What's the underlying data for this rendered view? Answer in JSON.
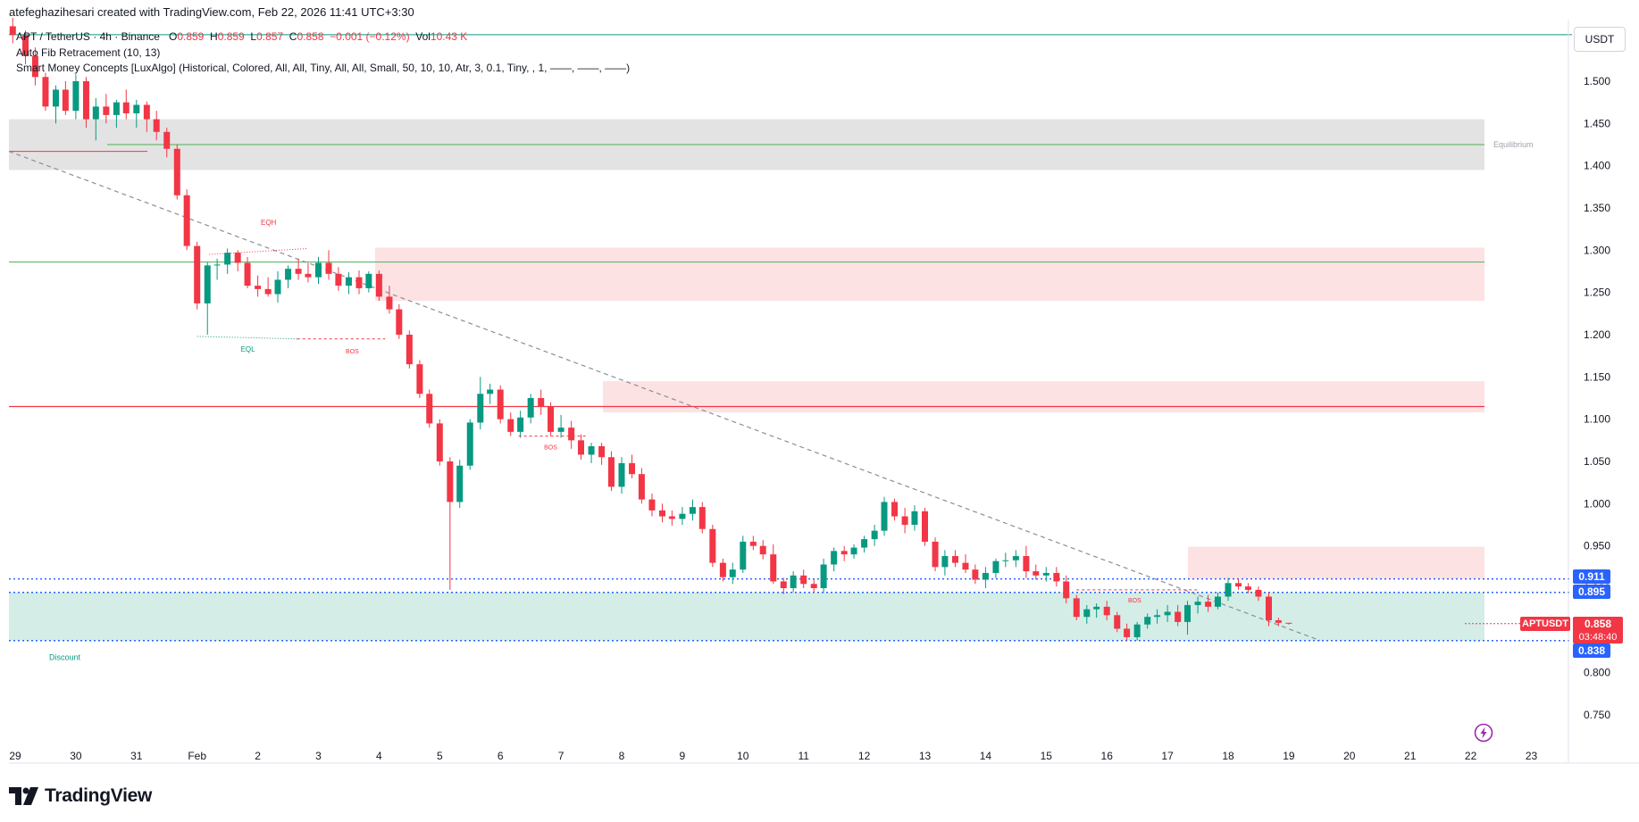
{
  "header": {
    "created_by": "atefeghazihesari created with TradingView.com, Feb 22, 2026 11:41 UTC+3:30",
    "symbol_line": "APT / TetherUS · 4h · Binance",
    "ohlc": {
      "o_label": "O",
      "o_value": "0.859",
      "h_label": "H",
      "h_value": "0.859",
      "l_label": "L",
      "l_value": "0.857",
      "c_label": "C",
      "c_value": "0.858",
      "change": "−0.001 (−0.12%)",
      "vol_label": "Vol",
      "vol_value": "10.43 K"
    },
    "indicator_fib": "Auto Fib Retracement (10, 13)",
    "indicator_smc": "Smart Money Concepts [LuxAlgo] (Historical, Colored, All, All, Tiny, All, All, Small, 50, 10, 10, Atr, 3, 0.1, Tiny, , 1, ——, ——, ——)"
  },
  "price_scale": {
    "currency": "USDT",
    "ticks": [
      "1.500",
      "1.450",
      "1.400",
      "1.350",
      "1.300",
      "1.250",
      "1.200",
      "1.150",
      "1.100",
      "1.050",
      "1.000",
      "0.950",
      "0.900",
      "0.850",
      "0.800",
      "0.750"
    ],
    "tags": {
      "level_0911": "0.911",
      "level_0895": "0.895",
      "level_0838": "0.838",
      "last_symbol": "APTUSDT",
      "last_price": "0.858",
      "countdown": "03:48:40"
    }
  },
  "time_scale": {
    "ticks": [
      "29",
      "30",
      "31",
      "Feb",
      "2",
      "3",
      "4",
      "5",
      "6",
      "7",
      "8",
      "9",
      "10",
      "11",
      "12",
      "13",
      "14",
      "15",
      "16",
      "17",
      "18",
      "19",
      "20",
      "21",
      "22",
      "23"
    ]
  },
  "annotations": {
    "equilibrium": "Equilibrium",
    "discount": "Discount",
    "eqh": "EQH",
    "eql": "EQL",
    "bos_1": "BOS",
    "bos_2": "BOS",
    "bos_3": "BOS"
  },
  "colors": {
    "up": "#089981",
    "down": "#f23645",
    "premium_zone": "#fde2e4",
    "discount_zone": "#d4ede7",
    "equilibrium_zone": "#e1e1e3",
    "accent_blue": "#2962ff"
  },
  "footer": {
    "brand": "TradingView"
  },
  "chart_data": {
    "type": "candlestick",
    "symbol": "APTUSDT",
    "timeframe": "4h",
    "ylim": [
      0.72,
      1.56
    ],
    "x_start": 28.95,
    "x_end": 23.7,
    "columns": [
      "day",
      "open",
      "high",
      "low",
      "close"
    ],
    "candles": [
      [
        28.96,
        1.565,
        1.575,
        1.545,
        1.555
      ],
      [
        29.17,
        1.555,
        1.56,
        1.52,
        1.53
      ],
      [
        29.33,
        1.53,
        1.54,
        1.495,
        1.505
      ],
      [
        29.5,
        1.505,
        1.51,
        1.465,
        1.47
      ],
      [
        29.67,
        1.47,
        1.495,
        1.45,
        1.49
      ],
      [
        29.83,
        1.49,
        1.5,
        1.46,
        1.465
      ],
      [
        30.0,
        1.465,
        1.508,
        1.455,
        1.5
      ],
      [
        30.17,
        1.5,
        1.505,
        1.445,
        1.455
      ],
      [
        30.33,
        1.455,
        1.48,
        1.43,
        1.47
      ],
      [
        30.5,
        1.47,
        1.485,
        1.45,
        1.46
      ],
      [
        30.67,
        1.46,
        1.478,
        1.445,
        1.475
      ],
      [
        30.83,
        1.475,
        1.49,
        1.455,
        1.462
      ],
      [
        31.0,
        1.462,
        1.478,
        1.445,
        1.472
      ],
      [
        31.17,
        1.472,
        1.476,
        1.44,
        1.455
      ],
      [
        31.33,
        1.455,
        1.465,
        1.43,
        1.44
      ],
      [
        31.5,
        1.44,
        1.445,
        1.41,
        1.42
      ],
      [
        31.67,
        1.42,
        1.425,
        1.36,
        1.365
      ],
      [
        31.83,
        1.365,
        1.372,
        1.3,
        1.305
      ],
      [
        32.0,
        1.305,
        1.31,
        1.23,
        1.237
      ],
      [
        32.17,
        1.237,
        1.286,
        1.2,
        1.282
      ],
      [
        32.33,
        1.282,
        1.29,
        1.265,
        1.283
      ],
      [
        32.5,
        1.283,
        1.302,
        1.272,
        1.297
      ],
      [
        32.67,
        1.297,
        1.3,
        1.275,
        1.285
      ],
      [
        32.83,
        1.285,
        1.292,
        1.255,
        1.258
      ],
      [
        33.0,
        1.258,
        1.27,
        1.245,
        1.254
      ],
      [
        33.17,
        1.254,
        1.268,
        1.245,
        1.248
      ],
      [
        33.33,
        1.248,
        1.275,
        1.238,
        1.265
      ],
      [
        33.5,
        1.265,
        1.282,
        1.255,
        1.278
      ],
      [
        33.67,
        1.278,
        1.29,
        1.265,
        1.272
      ],
      [
        33.83,
        1.272,
        1.285,
        1.262,
        1.268
      ],
      [
        34.0,
        1.268,
        1.292,
        1.26,
        1.285
      ],
      [
        34.17,
        1.285,
        1.3,
        1.265,
        1.272
      ],
      [
        34.33,
        1.272,
        1.28,
        1.252,
        1.258
      ],
      [
        34.5,
        1.258,
        1.274,
        1.248,
        1.268
      ],
      [
        34.67,
        1.268,
        1.276,
        1.248,
        1.255
      ],
      [
        34.83,
        1.255,
        1.275,
        1.25,
        1.272
      ],
      [
        35.0,
        1.272,
        1.276,
        1.24,
        1.245
      ],
      [
        35.17,
        1.245,
        1.258,
        1.225,
        1.23
      ],
      [
        35.33,
        1.23,
        1.236,
        1.195,
        1.2
      ],
      [
        35.5,
        1.2,
        1.205,
        1.16,
        1.165
      ],
      [
        35.67,
        1.165,
        1.17,
        1.125,
        1.13
      ],
      [
        35.83,
        1.13,
        1.135,
        1.09,
        1.095
      ],
      [
        36.0,
        1.095,
        1.1,
        1.045,
        1.05
      ],
      [
        36.17,
        1.05,
        1.055,
        0.898,
        1.002
      ],
      [
        36.33,
        1.002,
        1.052,
        0.995,
        1.045
      ],
      [
        36.5,
        1.045,
        1.1,
        1.04,
        1.096
      ],
      [
        36.67,
        1.096,
        1.15,
        1.088,
        1.13
      ],
      [
        36.83,
        1.13,
        1.142,
        1.118,
        1.135
      ],
      [
        37.0,
        1.135,
        1.14,
        1.095,
        1.1
      ],
      [
        37.17,
        1.1,
        1.108,
        1.08,
        1.085
      ],
      [
        37.33,
        1.085,
        1.11,
        1.078,
        1.102
      ],
      [
        37.5,
        1.102,
        1.13,
        1.095,
        1.125
      ],
      [
        37.67,
        1.125,
        1.135,
        1.105,
        1.115
      ],
      [
        37.83,
        1.115,
        1.12,
        1.08,
        1.085
      ],
      [
        38.0,
        1.085,
        1.105,
        1.078,
        1.09
      ],
      [
        38.17,
        1.09,
        1.098,
        1.065,
        1.075
      ],
      [
        38.33,
        1.075,
        1.082,
        1.052,
        1.058
      ],
      [
        38.5,
        1.058,
        1.072,
        1.048,
        1.068
      ],
      [
        38.67,
        1.068,
        1.072,
        1.046,
        1.055
      ],
      [
        38.83,
        1.055,
        1.062,
        1.015,
        1.02
      ],
      [
        39.0,
        1.02,
        1.055,
        1.012,
        1.048
      ],
      [
        39.17,
        1.048,
        1.058,
        1.03,
        1.035
      ],
      [
        39.33,
        1.035,
        1.042,
        1.0,
        1.005
      ],
      [
        39.5,
        1.005,
        1.012,
        0.985,
        0.992
      ],
      [
        39.67,
        0.992,
        1.0,
        0.978,
        0.985
      ],
      [
        39.83,
        0.985,
        0.992,
        0.974,
        0.982
      ],
      [
        40.0,
        0.982,
        0.996,
        0.975,
        0.988
      ],
      [
        40.17,
        0.988,
        1.005,
        0.98,
        0.996
      ],
      [
        40.33,
        0.996,
        1.002,
        0.965,
        0.97
      ],
      [
        40.5,
        0.97,
        0.975,
        0.925,
        0.93
      ],
      [
        40.67,
        0.93,
        0.935,
        0.908,
        0.913
      ],
      [
        40.83,
        0.913,
        0.93,
        0.905,
        0.922
      ],
      [
        41.0,
        0.922,
        0.962,
        0.918,
        0.955
      ],
      [
        41.17,
        0.955,
        0.962,
        0.945,
        0.95
      ],
      [
        41.33,
        0.95,
        0.957,
        0.934,
        0.94
      ],
      [
        41.5,
        0.94,
        0.952,
        0.905,
        0.908
      ],
      [
        41.67,
        0.908,
        0.912,
        0.893,
        0.9
      ],
      [
        41.83,
        0.9,
        0.92,
        0.895,
        0.915
      ],
      [
        42.0,
        0.915,
        0.922,
        0.9,
        0.905
      ],
      [
        42.17,
        0.905,
        0.91,
        0.895,
        0.9
      ],
      [
        42.33,
        0.9,
        0.935,
        0.895,
        0.928
      ],
      [
        42.5,
        0.928,
        0.948,
        0.92,
        0.944
      ],
      [
        42.67,
        0.944,
        0.95,
        0.932,
        0.94
      ],
      [
        42.83,
        0.94,
        0.952,
        0.935,
        0.948
      ],
      [
        43.0,
        0.948,
        0.962,
        0.942,
        0.958
      ],
      [
        43.17,
        0.958,
        0.975,
        0.95,
        0.968
      ],
      [
        43.33,
        0.968,
        1.008,
        0.962,
        1.002
      ],
      [
        43.5,
        1.002,
        1.006,
        0.98,
        0.985
      ],
      [
        43.67,
        0.985,
        0.995,
        0.965,
        0.975
      ],
      [
        43.83,
        0.975,
        0.998,
        0.968,
        0.991
      ],
      [
        44.0,
        0.991,
        0.995,
        0.95,
        0.955
      ],
      [
        44.17,
        0.955,
        0.96,
        0.92,
        0.925
      ],
      [
        44.33,
        0.925,
        0.945,
        0.915,
        0.938
      ],
      [
        44.5,
        0.938,
        0.945,
        0.925,
        0.93
      ],
      [
        44.67,
        0.93,
        0.94,
        0.918,
        0.922
      ],
      [
        44.83,
        0.922,
        0.928,
        0.905,
        0.91
      ],
      [
        45.0,
        0.91,
        0.925,
        0.9,
        0.918
      ],
      [
        45.17,
        0.918,
        0.935,
        0.912,
        0.932
      ],
      [
        45.33,
        0.932,
        0.942,
        0.925,
        0.933
      ],
      [
        45.5,
        0.933,
        0.945,
        0.925,
        0.938
      ],
      [
        45.67,
        0.938,
        0.95,
        0.912,
        0.92
      ],
      [
        45.83,
        0.92,
        0.928,
        0.91,
        0.915
      ],
      [
        46.0,
        0.915,
        0.925,
        0.908,
        0.918
      ],
      [
        46.17,
        0.918,
        0.925,
        0.902,
        0.908
      ],
      [
        46.33,
        0.908,
        0.915,
        0.882,
        0.888
      ],
      [
        46.5,
        0.888,
        0.892,
        0.862,
        0.866
      ],
      [
        46.67,
        0.866,
        0.88,
        0.858,
        0.875
      ],
      [
        46.83,
        0.875,
        0.882,
        0.865,
        0.878
      ],
      [
        47.0,
        0.878,
        0.885,
        0.862,
        0.868
      ],
      [
        47.17,
        0.868,
        0.872,
        0.848,
        0.852
      ],
      [
        47.33,
        0.852,
        0.858,
        0.838,
        0.842
      ],
      [
        47.5,
        0.842,
        0.86,
        0.838,
        0.857
      ],
      [
        47.67,
        0.857,
        0.87,
        0.852,
        0.866
      ],
      [
        47.83,
        0.866,
        0.875,
        0.858,
        0.868
      ],
      [
        48.0,
        0.868,
        0.88,
        0.86,
        0.872
      ],
      [
        48.17,
        0.872,
        0.88,
        0.855,
        0.86
      ],
      [
        48.33,
        0.86,
        0.885,
        0.845,
        0.88
      ],
      [
        48.5,
        0.88,
        0.89,
        0.87,
        0.884
      ],
      [
        48.67,
        0.884,
        0.892,
        0.872,
        0.878
      ],
      [
        48.83,
        0.878,
        0.895,
        0.875,
        0.89
      ],
      [
        49.0,
        0.89,
        0.912,
        0.885,
        0.906
      ],
      [
        49.17,
        0.906,
        0.911,
        0.898,
        0.902
      ],
      [
        49.33,
        0.902,
        0.906,
        0.894,
        0.898
      ],
      [
        49.5,
        0.898,
        0.902,
        0.885,
        0.89
      ],
      [
        49.67,
        0.89,
        0.895,
        0.855,
        0.862
      ],
      [
        49.83,
        0.862,
        0.865,
        0.855,
        0.859
      ],
      [
        50.0,
        0.859,
        0.859,
        0.857,
        0.858
      ]
    ],
    "levels": {
      "premium_zone_top": [
        1.303,
        1.24
      ],
      "premium_zone_mid": [
        1.145,
        1.108
      ],
      "premium_zone_low": [
        0.949,
        0.911
      ],
      "equilibrium_zone": [
        1.455,
        1.395
      ],
      "discount_zone": [
        0.895,
        0.838
      ],
      "red_line_1": 1.417,
      "red_line_2": 1.115,
      "green_line_1": 1.425,
      "green_line_2": 1.286,
      "green_line_top": 1.555
    }
  }
}
